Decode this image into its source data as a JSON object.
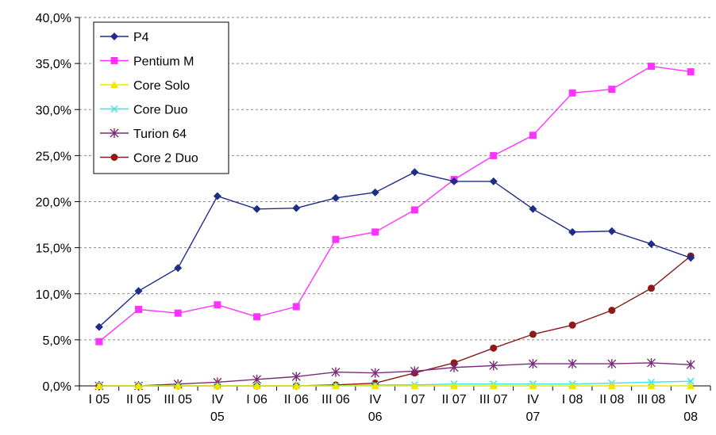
{
  "chart_data": {
    "type": "line",
    "title": "",
    "xlabel": "",
    "ylabel": "",
    "categories": [
      [
        "I 05"
      ],
      [
        "II 05"
      ],
      [
        "III 05"
      ],
      [
        "IV",
        "05"
      ],
      [
        "I 06"
      ],
      [
        "II 06"
      ],
      [
        "III 06"
      ],
      [
        "IV",
        "06"
      ],
      [
        "I 07"
      ],
      [
        "II 07"
      ],
      [
        "III 07"
      ],
      [
        "IV",
        "07"
      ],
      [
        "I 08"
      ],
      [
        "II 08"
      ],
      [
        "III 08"
      ],
      [
        "IV",
        "08"
      ]
    ],
    "ylim": [
      0,
      40
    ],
    "yticks": [
      0,
      5,
      10,
      15,
      20,
      25,
      30,
      35,
      40
    ],
    "ytick_labels": [
      "0,0%",
      "5,0%",
      "10,0%",
      "15,0%",
      "20,0%",
      "25,0%",
      "30,0%",
      "35,0%",
      "40,0%"
    ],
    "grid": {
      "y": true,
      "x": false,
      "style": "dashed"
    },
    "legend": {
      "position": "top-left",
      "border": true
    },
    "series": [
      {
        "name": "P4",
        "color": "#1f2d87",
        "marker": "diamond",
        "values": [
          6.4,
          10.3,
          12.8,
          20.6,
          19.2,
          19.3,
          20.4,
          21.0,
          23.2,
          22.2,
          22.2,
          19.2,
          16.7,
          16.8,
          15.4,
          13.9
        ]
      },
      {
        "name": "Pentium M",
        "color": "#ff33ff",
        "marker": "square",
        "values": [
          4.8,
          8.3,
          7.9,
          8.8,
          7.5,
          8.6,
          15.9,
          16.7,
          19.1,
          22.4,
          25.0,
          27.2,
          31.8,
          32.2,
          34.7,
          34.1
        ]
      },
      {
        "name": "Core Solo",
        "color": "#f2e600",
        "marker": "triangle",
        "values": [
          0.0,
          0.0,
          0.0,
          0.0,
          0.0,
          0.0,
          0.0,
          0.0,
          0.0,
          0.0,
          0.0,
          0.0,
          0.0,
          0.0,
          0.0,
          0.0
        ]
      },
      {
        "name": "Core Duo",
        "color": "#33e6f2",
        "marker": "x",
        "values": [
          0.0,
          0.0,
          0.0,
          0.0,
          0.0,
          0.0,
          0.0,
          0.1,
          0.1,
          0.2,
          0.2,
          0.2,
          0.2,
          0.3,
          0.4,
          0.5
        ]
      },
      {
        "name": "Turion 64",
        "color": "#7a2a7a",
        "marker": "star",
        "values": [
          0.0,
          0.0,
          0.2,
          0.4,
          0.7,
          1.0,
          1.5,
          1.4,
          1.6,
          2.0,
          2.2,
          2.4,
          2.4,
          2.4,
          2.5,
          2.3
        ]
      },
      {
        "name": "Core 2 Duo",
        "color": "#8b1a1a",
        "marker": "circle",
        "values": [
          0.0,
          0.0,
          0.0,
          0.0,
          0.0,
          0.0,
          0.1,
          0.3,
          1.4,
          2.5,
          4.1,
          5.6,
          6.6,
          8.2,
          10.6,
          14.1
        ]
      }
    ]
  }
}
